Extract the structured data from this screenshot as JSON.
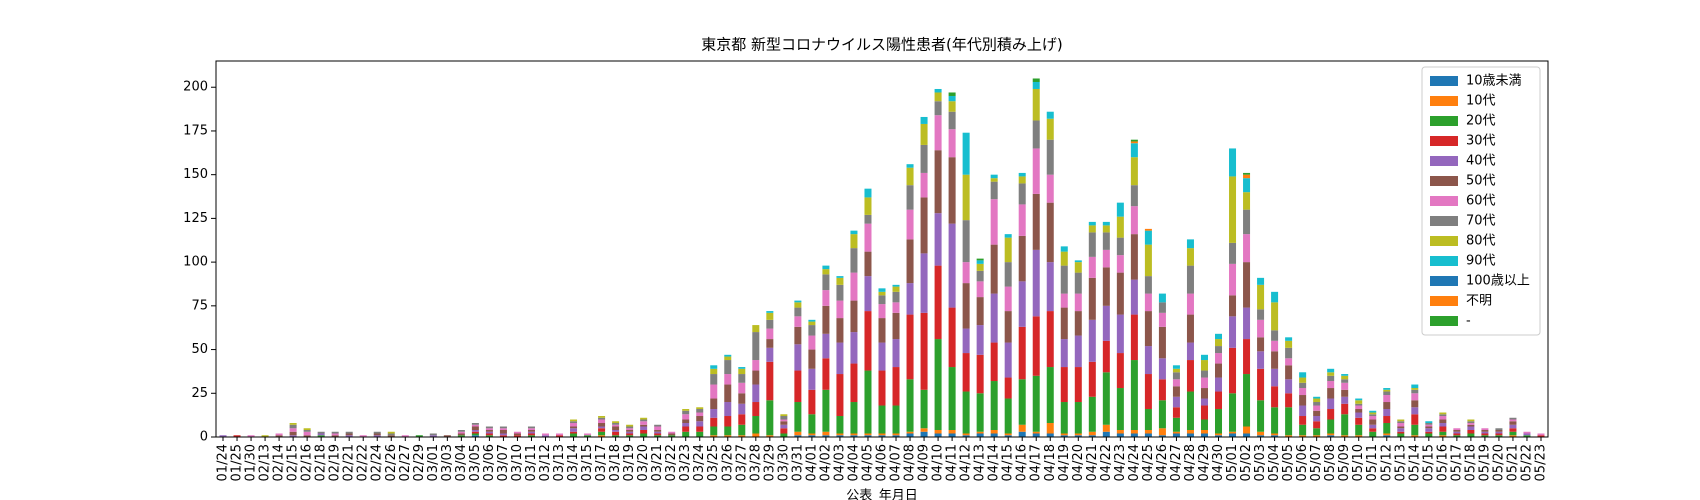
{
  "chart_data": {
    "type": "stacked_bar",
    "title": "東京都 新型コロナウイルス陽性患者(年代別積み上げ)",
    "x_label": "公表_年月日",
    "categories": [
      "01/24",
      "01/25",
      "01/30",
      "02/13",
      "02/14",
      "02/15",
      "02/16",
      "02/18",
      "02/19",
      "02/21",
      "02/22",
      "02/24",
      "02/26",
      "02/27",
      "02/29",
      "03/01",
      "03/03",
      "03/04",
      "03/05",
      "03/06",
      "03/07",
      "03/10",
      "03/11",
      "03/12",
      "03/13",
      "03/14",
      "03/15",
      "03/17",
      "03/18",
      "03/19",
      "03/20",
      "03/21",
      "03/22",
      "03/23",
      "03/24",
      "03/25",
      "03/26",
      "03/27",
      "03/28",
      "03/29",
      "03/30",
      "03/31",
      "04/01",
      "04/02",
      "04/03",
      "04/04",
      "04/05",
      "04/06",
      "04/07",
      "04/08",
      "04/09",
      "04/10",
      "04/11",
      "04/12",
      "04/13",
      "04/14",
      "04/15",
      "04/16",
      "04/17",
      "04/18",
      "04/19",
      "04/20",
      "04/21",
      "04/22",
      "04/23",
      "04/24",
      "04/25",
      "04/26",
      "04/27",
      "04/28",
      "04/29",
      "04/30",
      "05/01",
      "05/02",
      "05/03",
      "05/04",
      "05/05",
      "05/06",
      "05/07",
      "05/08",
      "05/09",
      "05/10",
      "05/11",
      "05/12",
      "05/13",
      "05/14",
      "05/15",
      "05/16",
      "05/17",
      "05/18",
      "05/19",
      "05/20",
      "05/21",
      "05/22",
      "05/23"
    ],
    "ylim": [
      0,
      215
    ],
    "yticks": [
      0,
      25,
      50,
      75,
      100,
      125,
      150,
      175,
      200
    ],
    "legend": "upper right",
    "series": [
      {
        "name": "10歳未満",
        "color": "#1f77b4",
        "values": [
          0,
          0,
          0,
          0,
          0,
          0,
          0,
          0,
          0,
          0,
          0,
          0,
          0,
          0,
          0,
          0,
          0,
          0,
          1,
          0,
          0,
          0,
          0,
          0,
          0,
          0,
          0,
          0,
          0,
          0,
          0,
          0,
          0,
          0,
          0,
          0,
          0,
          0,
          0,
          0,
          0,
          1,
          1,
          1,
          1,
          1,
          1,
          1,
          1,
          2,
          3,
          2,
          2,
          1,
          2,
          2,
          1,
          3,
          2,
          2,
          1,
          1,
          1,
          3,
          2,
          2,
          2,
          1,
          2,
          2,
          2,
          1,
          2,
          2,
          1,
          1,
          0,
          0,
          0,
          1,
          0,
          0,
          0,
          1,
          0,
          0,
          0,
          0,
          0,
          0,
          0,
          0,
          0,
          0,
          0
        ]
      },
      {
        "name": "10代",
        "color": "#ff7f0e",
        "values": [
          0,
          0,
          0,
          0,
          0,
          0,
          0,
          0,
          0,
          0,
          0,
          0,
          0,
          0,
          0,
          0,
          0,
          0,
          0,
          0,
          0,
          0,
          0,
          0,
          0,
          0,
          0,
          1,
          0,
          0,
          0,
          0,
          0,
          0,
          0,
          1,
          1,
          1,
          2,
          1,
          0,
          2,
          1,
          2,
          1,
          1,
          1,
          1,
          1,
          1,
          2,
          2,
          2,
          1,
          1,
          2,
          1,
          4,
          1,
          6,
          1,
          1,
          2,
          4,
          2,
          2,
          2,
          4,
          1,
          2,
          2,
          1,
          1,
          4,
          2,
          1,
          1,
          1,
          1,
          1,
          1,
          1,
          0,
          1,
          0,
          1,
          0,
          1,
          0,
          0,
          0,
          0,
          1,
          0,
          0
        ]
      },
      {
        "name": "20代",
        "color": "#2ca02c",
        "values": [
          0,
          0,
          0,
          0,
          0,
          0,
          0,
          1,
          0,
          0,
          0,
          0,
          0,
          0,
          1,
          0,
          0,
          1,
          1,
          1,
          0,
          0,
          1,
          0,
          0,
          2,
          1,
          2,
          1,
          1,
          2,
          1,
          1,
          3,
          3,
          5,
          5,
          6,
          10,
          20,
          2,
          17,
          11,
          24,
          10,
          18,
          36,
          16,
          16,
          30,
          22,
          52,
          36,
          24,
          22,
          28,
          20,
          26,
          32,
          32,
          18,
          18,
          20,
          30,
          24,
          40,
          12,
          16,
          8,
          22,
          6,
          14,
          22,
          30,
          18,
          15,
          16,
          6,
          4,
          8,
          12,
          6,
          3,
          6,
          2,
          6,
          2,
          2,
          1,
          2,
          1,
          1,
          2,
          1,
          0
        ]
      },
      {
        "name": "30代",
        "color": "#d62728",
        "values": [
          0,
          1,
          0,
          0,
          0,
          0,
          0,
          0,
          0,
          0,
          0,
          0,
          0,
          0,
          0,
          0,
          0,
          0,
          1,
          1,
          1,
          1,
          1,
          0,
          1,
          1,
          0,
          2,
          2,
          1,
          2,
          1,
          0,
          3,
          3,
          5,
          6,
          6,
          8,
          22,
          3,
          18,
          14,
          18,
          24,
          22,
          34,
          20,
          22,
          37,
          44,
          42,
          34,
          22,
          22,
          22,
          12,
          30,
          34,
          32,
          20,
          20,
          20,
          18,
          20,
          26,
          20,
          12,
          6,
          18,
          8,
          10,
          26,
          20,
          18,
          12,
          8,
          5,
          4,
          6,
          6,
          4,
          2,
          4,
          1,
          6,
          1,
          3,
          1,
          2,
          1,
          1,
          2,
          0,
          1
        ]
      },
      {
        "name": "40代",
        "color": "#9467bd",
        "values": [
          1,
          0,
          0,
          0,
          0,
          1,
          0,
          1,
          0,
          1,
          0,
          1,
          0,
          0,
          0,
          1,
          0,
          0,
          1,
          1,
          1,
          0,
          1,
          1,
          0,
          2,
          0,
          1,
          1,
          1,
          2,
          1,
          0,
          2,
          3,
          5,
          8,
          6,
          10,
          8,
          2,
          15,
          12,
          14,
          18,
          18,
          20,
          16,
          16,
          18,
          34,
          30,
          48,
          14,
          17,
          28,
          20,
          26,
          38,
          28,
          16,
          18,
          24,
          20,
          22,
          20,
          16,
          12,
          6,
          10,
          4,
          8,
          18,
          18,
          10,
          10,
          8,
          6,
          3,
          6,
          4,
          3,
          2,
          4,
          2,
          4,
          2,
          2,
          1,
          2,
          1,
          1,
          2,
          1,
          0
        ]
      },
      {
        "name": "50代",
        "color": "#8c564b",
        "values": [
          0,
          0,
          0,
          0,
          1,
          2,
          1,
          0,
          1,
          1,
          0,
          1,
          1,
          0,
          0,
          0,
          1,
          1,
          2,
          1,
          2,
          1,
          1,
          0,
          0,
          1,
          0,
          2,
          2,
          1,
          1,
          1,
          1,
          2,
          3,
          6,
          10,
          6,
          8,
          5,
          2,
          10,
          11,
          16,
          14,
          18,
          14,
          14,
          15,
          25,
          32,
          36,
          38,
          26,
          16,
          28,
          18,
          26,
          32,
          34,
          18,
          14,
          24,
          22,
          24,
          26,
          20,
          18,
          6,
          16,
          6,
          8,
          12,
          26,
          8,
          10,
          8,
          6,
          3,
          6,
          4,
          2,
          3,
          4,
          1,
          4,
          1,
          2,
          1,
          1,
          1,
          1,
          2,
          0,
          0
        ]
      },
      {
        "name": "60代",
        "color": "#e377c2",
        "values": [
          0,
          0,
          1,
          0,
          1,
          2,
          2,
          0,
          1,
          0,
          1,
          0,
          0,
          1,
          0,
          0,
          0,
          1,
          1,
          1,
          1,
          1,
          1,
          1,
          1,
          2,
          1,
          2,
          1,
          1,
          2,
          2,
          1,
          3,
          2,
          8,
          6,
          6,
          6,
          6,
          1,
          6,
          8,
          9,
          10,
          16,
          16,
          8,
          6,
          17,
          14,
          20,
          16,
          12,
          9,
          26,
          14,
          18,
          26,
          16,
          8,
          10,
          12,
          10,
          10,
          16,
          10,
          8,
          4,
          12,
          6,
          6,
          18,
          16,
          10,
          6,
          4,
          4,
          3,
          4,
          4,
          2,
          2,
          4,
          2,
          4,
          1,
          2,
          1,
          1,
          1,
          0,
          1,
          1,
          1
        ]
      },
      {
        "name": "70代",
        "color": "#7f7f7f",
        "values": [
          0,
          0,
          0,
          0,
          0,
          2,
          1,
          1,
          1,
          1,
          0,
          1,
          1,
          0,
          0,
          1,
          0,
          1,
          1,
          1,
          1,
          0,
          1,
          0,
          0,
          1,
          0,
          1,
          1,
          1,
          1,
          1,
          0,
          2,
          2,
          6,
          8,
          5,
          16,
          5,
          2,
          5,
          6,
          9,
          9,
          14,
          5,
          5,
          6,
          14,
          16,
          8,
          10,
          24,
          6,
          10,
          14,
          12,
          16,
          20,
          16,
          12,
          14,
          10,
          10,
          12,
          10,
          6,
          4,
          16,
          4,
          4,
          12,
          14,
          6,
          6,
          6,
          3,
          2,
          3,
          2,
          1,
          1,
          2,
          1,
          2,
          1,
          1,
          0,
          1,
          0,
          1,
          1,
          0,
          0
        ]
      },
      {
        "name": "80代",
        "color": "#bcbd22",
        "values": [
          0,
          0,
          0,
          1,
          0,
          1,
          1,
          0,
          0,
          0,
          0,
          0,
          1,
          0,
          0,
          0,
          0,
          0,
          0,
          0,
          0,
          0,
          0,
          0,
          0,
          1,
          0,
          1,
          1,
          1,
          1,
          0,
          0,
          1,
          1,
          3,
          2,
          3,
          4,
          4,
          1,
          3,
          2,
          3,
          4,
          8,
          10,
          2,
          3,
          10,
          12,
          5,
          6,
          26,
          4,
          2,
          14,
          4,
          18,
          12,
          8,
          6,
          4,
          4,
          12,
          16,
          18,
          0,
          2,
          10,
          6,
          4,
          38,
          10,
          14,
          16,
          4,
          3,
          2,
          2,
          2,
          2,
          1,
          1,
          1,
          1,
          0,
          1,
          0,
          1,
          0,
          0,
          0,
          0,
          0
        ]
      },
      {
        "name": "90代",
        "color": "#17becf",
        "values": [
          0,
          0,
          0,
          0,
          0,
          0,
          0,
          0,
          0,
          0,
          0,
          0,
          0,
          0,
          0,
          0,
          0,
          0,
          0,
          0,
          0,
          0,
          0,
          0,
          0,
          0,
          0,
          0,
          0,
          0,
          0,
          0,
          0,
          0,
          0,
          2,
          1,
          1,
          0,
          1,
          0,
          1,
          1,
          2,
          1,
          2,
          5,
          2,
          1,
          2,
          4,
          2,
          3,
          24,
          2,
          2,
          2,
          2,
          4,
          4,
          3,
          1,
          2,
          2,
          8,
          8,
          8,
          5,
          2,
          5,
          3,
          3,
          16,
          8,
          4,
          6,
          2,
          3,
          1,
          2,
          1,
          1,
          1,
          1,
          0,
          2,
          1,
          0,
          0,
          0,
          0,
          0,
          0,
          0,
          0
        ]
      },
      {
        "name": "100歳以上",
        "color": "#1f77b4",
        "values": [
          0,
          0,
          0,
          0,
          0,
          0,
          0,
          0,
          0,
          0,
          0,
          0,
          0,
          0,
          0,
          0,
          0,
          0,
          0,
          0,
          0,
          0,
          0,
          0,
          0,
          0,
          0,
          0,
          0,
          0,
          0,
          0,
          0,
          0,
          0,
          0,
          0,
          0,
          0,
          0,
          0,
          0,
          0,
          0,
          0,
          0,
          0,
          0,
          0,
          0,
          0,
          0,
          0,
          0,
          0,
          0,
          0,
          0,
          0,
          0,
          0,
          0,
          0,
          0,
          0,
          0,
          0,
          0,
          0,
          0,
          0,
          0,
          0,
          0,
          0,
          0,
          0,
          0,
          0,
          0,
          0,
          0,
          0,
          0,
          0,
          0,
          0,
          0,
          0,
          0,
          0,
          0,
          0,
          0,
          0
        ]
      },
      {
        "name": "不明",
        "color": "#ff7f0e",
        "values": [
          0,
          0,
          0,
          0,
          0,
          0,
          0,
          0,
          0,
          0,
          0,
          0,
          0,
          0,
          0,
          0,
          0,
          0,
          0,
          0,
          0,
          0,
          0,
          0,
          0,
          0,
          0,
          0,
          0,
          0,
          0,
          0,
          0,
          0,
          0,
          0,
          0,
          0,
          0,
          0,
          0,
          0,
          0,
          0,
          0,
          0,
          0,
          0,
          0,
          0,
          0,
          0,
          0,
          0,
          0,
          0,
          0,
          0,
          0,
          0,
          0,
          0,
          0,
          0,
          0,
          1,
          1,
          0,
          0,
          0,
          0,
          0,
          0,
          2,
          0,
          0,
          0,
          0,
          0,
          0,
          0,
          0,
          0,
          0,
          0,
          0,
          0,
          0,
          0,
          0,
          0,
          0,
          0,
          0,
          0
        ]
      },
      {
        "name": "-",
        "color": "#2ca02c",
        "values": [
          0,
          0,
          0,
          0,
          0,
          0,
          0,
          0,
          0,
          0,
          0,
          0,
          0,
          0,
          0,
          0,
          0,
          0,
          0,
          0,
          0,
          0,
          0,
          0,
          0,
          0,
          0,
          0,
          0,
          0,
          0,
          0,
          0,
          0,
          0,
          0,
          0,
          0,
          0,
          0,
          0,
          0,
          0,
          0,
          0,
          0,
          0,
          0,
          0,
          0,
          0,
          0,
          2,
          0,
          1,
          0,
          0,
          0,
          2,
          0,
          0,
          0,
          0,
          0,
          0,
          1,
          0,
          0,
          0,
          0,
          0,
          0,
          0,
          1,
          0,
          0,
          0,
          0,
          0,
          0,
          0,
          0,
          0,
          0,
          0,
          0,
          0,
          0,
          0,
          0,
          0,
          0,
          0,
          0,
          0
        ]
      }
    ]
  }
}
